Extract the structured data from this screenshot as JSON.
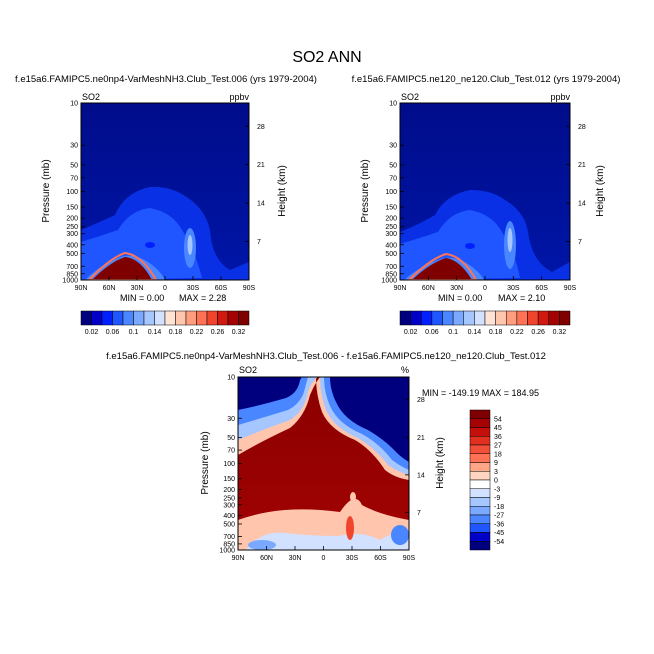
{
  "page_title": "SO2 ANN",
  "colors": {
    "scale": [
      "#00007f",
      "#0000c8",
      "#0020ff",
      "#1f56ff",
      "#4a86ff",
      "#7aa9ff",
      "#a5c6ff",
      "#d2e1ff",
      "#ffffff",
      "#ffe3d4",
      "#ffc5ad",
      "#ff9d7e",
      "#ff7256",
      "#f0442c",
      "#d01a0f",
      "#a50303",
      "#7f0000"
    ]
  },
  "chart_data": [
    {
      "type": "heatmap",
      "title": "f.e15a6.FAMIPC5.ne0np4-VarMeshNH3.Club_Test.006 (yrs 1979-2004)",
      "variable": "SO2",
      "units": "ppbv",
      "xlabel": "",
      "ylabel": "Pressure (mb)",
      "ylabel_right": "Height (km)",
      "x_tick_labels": [
        "90N",
        "60N",
        "30N",
        "0",
        "30S",
        "60S",
        "90S"
      ],
      "x_tick_values": [
        90,
        60,
        30,
        0,
        -30,
        -60,
        -90
      ],
      "xlim": [
        90,
        -90
      ],
      "y_scale": "log",
      "ylim": [
        1000,
        10
      ],
      "y_tick_labels": [
        "10",
        "30",
        "50",
        "70",
        "100",
        "150",
        "200",
        "250",
        "300",
        "400",
        "500",
        "700",
        "850",
        "1000"
      ],
      "y_tick_values": [
        10,
        30,
        50,
        70,
        100,
        150,
        200,
        250,
        300,
        400,
        500,
        700,
        850,
        1000
      ],
      "y2_tick_labels": [
        "28",
        "21",
        "14",
        "7"
      ],
      "y2_tick_values": [
        28,
        21,
        14,
        7
      ],
      "min_label": "MIN =  0.00",
      "max_label": "MAX =  2.28",
      "colorbar_labels": [
        "0.02",
        "0.06",
        "0.1",
        "0.14",
        "0.18",
        "0.22",
        "0.26",
        "0.32"
      ],
      "colorbar_levels": [
        0.02,
        0.04,
        0.06,
        0.08,
        0.1,
        0.12,
        0.14,
        0.16,
        0.18,
        0.2,
        0.22,
        0.24,
        0.26,
        0.28,
        0.32
      ]
    },
    {
      "type": "heatmap",
      "title": "f.e15a6.FAMIPC5.ne120_ne120.Club_Test.012 (yrs 1979-2004)",
      "variable": "SO2",
      "units": "ppbv",
      "xlabel": "",
      "ylabel": "Pressure (mb)",
      "ylabel_right": "Height (km)",
      "x_tick_labels": [
        "90N",
        "60N",
        "30N",
        "0",
        "30S",
        "60S",
        "90S"
      ],
      "x_tick_values": [
        90,
        60,
        30,
        0,
        -30,
        -60,
        -90
      ],
      "xlim": [
        90,
        -90
      ],
      "y_scale": "log",
      "ylim": [
        1000,
        10
      ],
      "y_tick_labels": [
        "10",
        "30",
        "50",
        "70",
        "100",
        "150",
        "200",
        "250",
        "300",
        "400",
        "500",
        "700",
        "850",
        "1000"
      ],
      "y_tick_values": [
        10,
        30,
        50,
        70,
        100,
        150,
        200,
        250,
        300,
        400,
        500,
        700,
        850,
        1000
      ],
      "y2_tick_labels": [
        "28",
        "21",
        "14",
        "7"
      ],
      "y2_tick_values": [
        28,
        21,
        14,
        7
      ],
      "min_label": "MIN =  0.00",
      "max_label": "MAX =  2.10",
      "colorbar_labels": [
        "0.02",
        "0.06",
        "0.1",
        "0.14",
        "0.18",
        "0.22",
        "0.26",
        "0.32"
      ],
      "colorbar_levels": [
        0.02,
        0.04,
        0.06,
        0.08,
        0.1,
        0.12,
        0.14,
        0.16,
        0.18,
        0.2,
        0.22,
        0.24,
        0.26,
        0.28,
        0.32
      ]
    },
    {
      "type": "heatmap",
      "title": "f.e15a6.FAMIPC5.ne0np4-VarMeshNH3.Club_Test.006 - f.e15a6.FAMIPC5.ne120_ne120.Club_Test.012",
      "variable": "SO2",
      "units": "%",
      "xlabel": "",
      "ylabel": "Pressure (mb)",
      "ylabel_right": "Height (km)",
      "x_tick_labels": [
        "90N",
        "60N",
        "30N",
        "0",
        "30S",
        "60S",
        "90S"
      ],
      "x_tick_values": [
        90,
        60,
        30,
        0,
        -30,
        -60,
        -90
      ],
      "xlim": [
        90,
        -90
      ],
      "y_scale": "log",
      "ylim": [
        1000,
        10
      ],
      "y_tick_labels": [
        "10",
        "30",
        "50",
        "70",
        "100",
        "150",
        "200",
        "250",
        "300",
        "400",
        "500",
        "700",
        "850",
        "1000"
      ],
      "y_tick_values": [
        10,
        30,
        50,
        70,
        100,
        150,
        200,
        250,
        300,
        400,
        500,
        700,
        850,
        1000
      ],
      "y2_tick_labels": [
        "28",
        "21",
        "14",
        "7"
      ],
      "y2_tick_values": [
        28,
        21,
        14,
        7
      ],
      "minmax_label": "MIN = -149.19  MAX = 184.95",
      "colorbar_labels": [
        "54",
        "45",
        "36",
        "27",
        "18",
        "9",
        "3",
        "0",
        "-3",
        "-9",
        "-18",
        "-27",
        "-36",
        "-45",
        "-54"
      ]
    }
  ]
}
